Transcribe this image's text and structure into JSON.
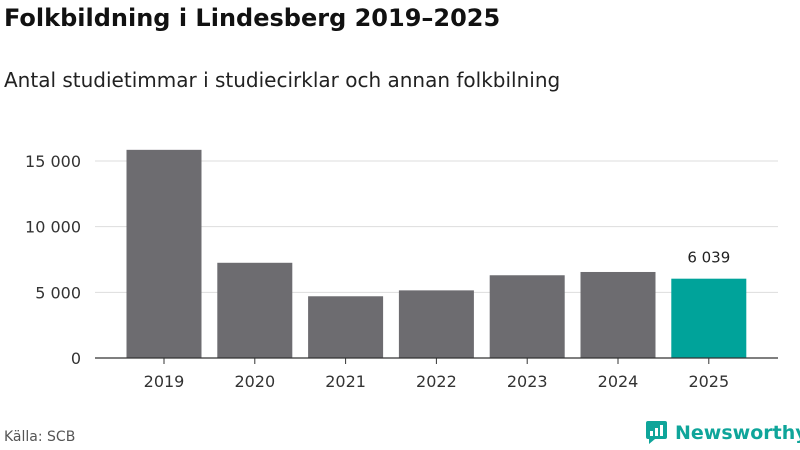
{
  "title": "Folkbildning i Lindesberg 2019–2025",
  "subtitle": "Antal studietimmar i studiecirklar och annan folkbilning",
  "source": "Källa: SCB",
  "brand": {
    "name": "Newsworthy",
    "icon": "newsworthy-logo-icon",
    "color": "#0fa59a"
  },
  "colors": {
    "bar": "#6d6c70",
    "highlight": "#00a39a",
    "grid": "#dddddd",
    "axis": "#333333"
  },
  "chart_data": {
    "type": "bar",
    "title": "Folkbildning i Lindesberg 2019–2025",
    "subtitle": "Antal studietimmar i studiecirklar och annan folkbilning",
    "xlabel": "",
    "ylabel": "",
    "categories": [
      "2019",
      "2020",
      "2021",
      "2022",
      "2023",
      "2024",
      "2025"
    ],
    "values": [
      15850,
      7250,
      4700,
      5150,
      6300,
      6550,
      6039
    ],
    "highlight_index": 6,
    "data_labels": [
      {
        "category": "2025",
        "text": "6 039"
      }
    ],
    "ylim": [
      0,
      16000
    ],
    "yticks": [
      0,
      5000,
      10000,
      15000
    ],
    "ytick_labels": [
      "0",
      "5 000",
      "10 000",
      "15 000"
    ],
    "grid": true,
    "legend": "none"
  }
}
